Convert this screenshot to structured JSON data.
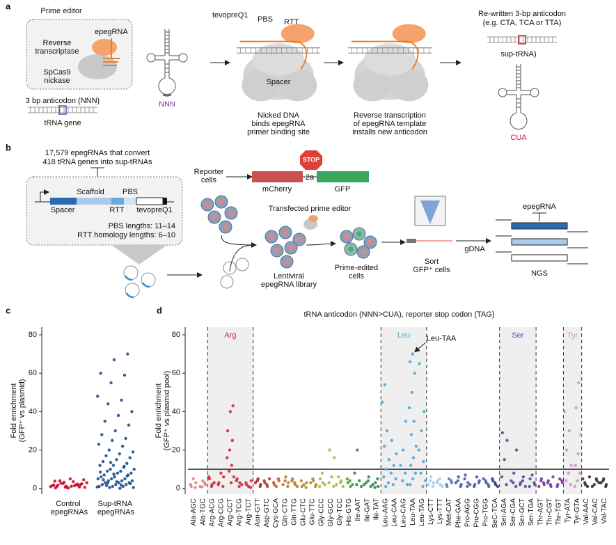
{
  "panel_a": {
    "label": "a",
    "prime_editor": "Prime editor",
    "epegrna": "epegRNA",
    "reverse_transcriptase": [
      "Reverse",
      "transcriptase"
    ],
    "spcas9_nickase": [
      "SpCas9",
      "nickase"
    ],
    "anticodon_nnn": "3 bp anticodon (NNN)",
    "trna_gene": "tRNA gene",
    "nnn": "NNN",
    "tevopreq1": "tevopreQ1",
    "pbs": "PBS",
    "rtt": "RTT",
    "spacer": "Spacer",
    "step1": [
      "Nicked DNA",
      "binds epegRNA",
      "primer binding site"
    ],
    "step2": [
      "Reverse transcription",
      "of epegRNA template",
      "installs new anticodon"
    ],
    "rewritten": [
      "Re-written 3-bp anticodon",
      "(e.g. CTA, TCA or TTA)"
    ],
    "sup_trna": "sup-tRNA)",
    "cua": "CUA"
  },
  "panel_b": {
    "label": "b",
    "library": [
      "17,579 epegRNAs that convert",
      "418 tRNA genes into sup-tRNAs"
    ],
    "scaffold": "Scaffold",
    "pbs": "PBS",
    "spacer": "Spacer",
    "rtt": "RTT",
    "tevopreq1": "tevopreQ1",
    "pbs_lengths": "PBS lengths: 11–14",
    "rtt_lengths": "RTT homology lengths: 6–10",
    "reporter_cells": [
      "Reporter",
      "cells"
    ],
    "stop": "STOP",
    "mcherry": "mCherry",
    "p2a": "2a",
    "gfp": "GFP",
    "transfected": "Transfected prime editor",
    "lentiviral": [
      "Lentiviral",
      "epegRNA library"
    ],
    "prime_edited": [
      "Prime-edited",
      "cells"
    ],
    "sort": [
      "Sort",
      "GFP⁺ cells"
    ],
    "gdna": "gDNA",
    "epegrna": "epegRNA",
    "ngs": "NGS"
  },
  "chart_data": [
    {
      "type": "strip",
      "panel": "c",
      "ylabel": [
        "Fold enrichment",
        "(GFP⁺ vs plasmid)"
      ],
      "categories": [
        "Control epegRNAs",
        "Sup-tRNA epegRNAs"
      ],
      "colors": [
        "#c8102e",
        "#1f4e8c"
      ],
      "values": [
        [
          0.3,
          0.8,
          1.2,
          1.5,
          2,
          2.5,
          3,
          3.5,
          4,
          4.5,
          5,
          1,
          2,
          0.5,
          1.8,
          2.2,
          3.2,
          0.9,
          1.4,
          2.7,
          0.6,
          1.1,
          1.7,
          2.4,
          0.2,
          3.8,
          1.3,
          0.7
        ],
        [
          70,
          67,
          60,
          59,
          55,
          48,
          46,
          44,
          40,
          38,
          35,
          33,
          30,
          28,
          26,
          25,
          23,
          22,
          20,
          19,
          18,
          17,
          16,
          15,
          14,
          13,
          12,
          12,
          11,
          10,
          10,
          9,
          9,
          8,
          8,
          7,
          7,
          6,
          6,
          5,
          5,
          5,
          4,
          4,
          4,
          3,
          3,
          3,
          2,
          2,
          2,
          1,
          1,
          1,
          0.5,
          0.5,
          0,
          1.5,
          2.5,
          3.5,
          4.5,
          6.5,
          7.5,
          8.5,
          11.5,
          13.5,
          0.8,
          1.8,
          2.8
        ]
      ],
      "ylim": [
        -3,
        84
      ],
      "yticks": [
        0,
        20,
        40,
        60,
        80
      ]
    },
    {
      "type": "strip",
      "panel": "d",
      "title": "tRNA anticodon (NNN>CUA), reporter stop codon (TAG)",
      "ylabel": [
        "Fold enrichment",
        "(GFP⁺ vs plasmid pool)"
      ],
      "categories": [
        "Ala-AGC",
        "Ala-TGC",
        "Arg-ACG",
        "Arg-CCG",
        "Arg-CCT",
        "Arg-TCG",
        "Arg-TCT",
        "Asn-GTT",
        "Asp-GTC",
        "Cys-GCA",
        "Gln-CTG",
        "Gln-TTG",
        "Glu-CTC",
        "Glu-TTC",
        "Gly-CCC",
        "Gly-GCC",
        "Gly-TCC",
        "His-GTG",
        "Ile-AAT",
        "Ile-GAT",
        "Ile-TAT",
        "Leu-AAG",
        "Leu-CAA",
        "Leu-CAG",
        "Leu-TAA",
        "Leu-TAG",
        "Lys-CTT",
        "Lys-TTT",
        "Met-CAT",
        "Phe-GAA",
        "Pro-AGG",
        "Pro-CGG",
        "Pro-TGG",
        "SeC-TCA",
        "Ser-AGA",
        "Ser-CGA",
        "Ser-GCT",
        "Ser-TGA",
        "Thr-AGT",
        "Thr-CGT",
        "Thr-TGT",
        "Tyr-ATA",
        "Tyr-GTA",
        "Val-AAC",
        "Val-CAC",
        "Val-TAC"
      ],
      "colors": [
        "#e8837a",
        "#e8837a",
        "#d62839",
        "#d62839",
        "#d62839",
        "#d62839",
        "#d62839",
        "#a52a2a",
        "#c0392b",
        "#d4572a",
        "#c8742a",
        "#c8742a",
        "#b8862b",
        "#b8862b",
        "#9dbf3c",
        "#9dbf3c",
        "#9dbf3c",
        "#4a9e3a",
        "#2e8b57",
        "#2e8b57",
        "#2e8b57",
        "#4aa8e0",
        "#4aa8e0",
        "#4aa8e0",
        "#4aa8e0",
        "#4aa8e0",
        "#9bd3e8",
        "#9bd3e8",
        "#4f7fbf",
        "#3b5ea8",
        "#4f5ba8",
        "#4f5ba8",
        "#4f5ba8",
        "#3a3a8a",
        "#5b4a9e",
        "#5b4a9e",
        "#5b4a9e",
        "#5b4a9e",
        "#7b3b9c",
        "#7b3b9c",
        "#7b3b9c",
        "#d88fc8",
        "#d88fc8",
        "#333333",
        "#333333",
        "#333333"
      ],
      "values": [
        [
          1,
          3,
          5,
          2,
          0.5
        ],
        [
          2,
          4,
          1,
          3,
          0.8
        ],
        [
          2,
          5,
          3,
          1,
          6
        ],
        [
          3,
          6,
          8,
          2,
          1
        ],
        [
          43,
          40,
          30,
          25,
          20,
          16,
          12,
          9,
          6,
          3
        ],
        [
          3,
          5,
          2,
          1,
          4
        ],
        [
          2,
          4,
          1,
          3,
          0.5
        ],
        [
          2,
          5,
          3,
          1,
          4
        ],
        [
          1,
          3,
          5,
          2,
          4
        ],
        [
          2,
          4,
          1,
          3,
          5
        ],
        [
          3,
          6,
          2,
          1,
          4
        ],
        [
          2,
          5,
          1,
          3,
          4
        ],
        [
          1,
          3,
          2,
          4,
          0.5
        ],
        [
          2,
          4,
          3,
          1,
          5
        ],
        [
          3,
          5,
          2,
          8,
          1
        ],
        [
          20,
          16,
          6,
          3,
          1
        ],
        [
          2,
          4,
          6,
          1,
          3
        ],
        [
          1,
          3,
          2,
          4,
          5
        ],
        [
          20,
          8,
          4,
          2,
          1
        ],
        [
          2,
          6,
          3,
          1,
          4
        ],
        [
          1,
          3,
          2,
          5,
          0.5
        ],
        [
          54,
          45,
          30,
          22,
          15,
          10,
          6,
          3,
          1
        ],
        [
          25,
          18,
          12,
          8,
          5,
          2
        ],
        [
          35,
          20,
          12,
          8,
          4,
          2
        ],
        [
          70,
          66,
          60,
          50,
          42,
          35,
          28,
          22,
          16,
          12,
          8,
          5,
          2
        ],
        [
          65,
          40,
          30,
          20,
          14,
          8,
          4,
          1
        ],
        [
          3,
          6,
          2,
          1,
          4
        ],
        [
          2,
          4,
          1,
          5,
          3
        ],
        [
          1,
          3,
          5,
          2,
          4
        ],
        [
          2,
          6,
          3,
          1,
          4
        ],
        [
          3,
          7,
          2,
          1,
          5
        ],
        [
          2,
          4,
          6,
          1,
          3
        ],
        [
          1,
          3,
          5,
          2,
          4
        ],
        [
          2,
          4,
          1,
          3,
          5
        ],
        [
          29,
          25,
          15,
          6,
          2
        ],
        [
          20,
          8,
          4,
          1,
          3
        ],
        [
          6,
          3,
          1,
          4,
          2
        ],
        [
          5,
          2,
          7,
          1,
          3
        ],
        [
          2,
          5,
          1,
          3,
          4
        ],
        [
          1,
          4,
          6,
          2,
          3
        ],
        [
          2,
          3,
          5,
          1,
          4
        ],
        [
          40,
          30,
          20,
          12,
          8,
          4,
          2
        ],
        [
          55,
          42,
          28,
          18,
          12,
          8,
          4,
          1
        ],
        [
          2,
          5,
          1,
          3,
          6
        ],
        [
          1,
          4,
          2,
          3,
          5
        ],
        [
          2,
          5,
          3,
          1,
          4
        ]
      ],
      "ylim": [
        -3,
        84
      ],
      "yticks": [
        0,
        20,
        40,
        60,
        80
      ],
      "threshold": 10,
      "highlights": [
        {
          "label": "Arg",
          "from": "Arg-ACG",
          "to": "Arg-TCT",
          "color": "#d62839"
        },
        {
          "label": "Leu",
          "from": "Leu-AAG",
          "to": "Leu-TAG",
          "color": "#4aa8e0"
        },
        {
          "label": "Ser",
          "from": "Ser-AGA",
          "to": "Ser-TGA",
          "color": "#5b4a9e"
        },
        {
          "label": "Tyr",
          "from": "Tyr-ATA",
          "to": "Tyr-GTA",
          "color": "#d88fc8"
        }
      ],
      "annotation": {
        "text": "Leu-TAA"
      }
    }
  ]
}
